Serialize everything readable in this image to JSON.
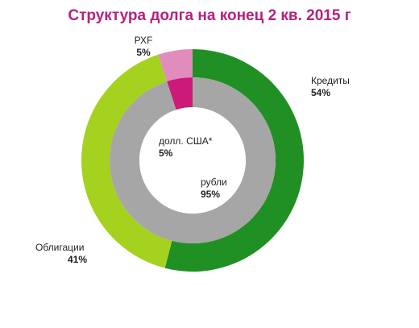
{
  "chart_data": {
    "type": "donut",
    "title": "Структура долга на конец 2 кв. 2015 г",
    "outer_ring": {
      "slices": [
        {
          "name": "Кредиты",
          "percent_label": "54%",
          "value": 54,
          "color": "#219024"
        },
        {
          "name": "Облигации",
          "percent_label": "41%",
          "value": 41,
          "color": "#a4d21f"
        },
        {
          "name": "РХF",
          "percent_label": "5%",
          "value": 5,
          "color": "#e08cbd"
        }
      ]
    },
    "inner_ring": {
      "slices": [
        {
          "name": "рубли",
          "percent_label": "95%",
          "value": 95,
          "color": "#a6a6a6"
        },
        {
          "name": "долл. США*",
          "percent_label": "5%",
          "value": 5,
          "color": "#cc1a78"
        }
      ]
    }
  }
}
